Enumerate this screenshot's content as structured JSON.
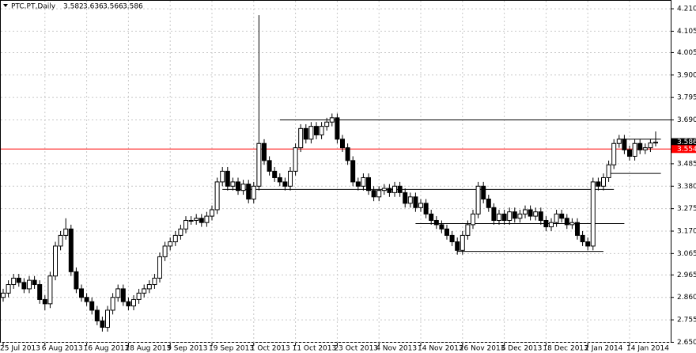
{
  "chart_data": {
    "type": "candlestick",
    "symbol": "PTC.PT,Daily",
    "categories": [
      "25 Jul 2013",
      null,
      null,
      null,
      null,
      null,
      null,
      null,
      "6 Aug 2013",
      null,
      null,
      null,
      null,
      null,
      null,
      null,
      "16 Aug 2013",
      null,
      null,
      null,
      null,
      null,
      null,
      null,
      "28 Aug 2013",
      null,
      null,
      null,
      null,
      null,
      null,
      null,
      "9 Sep 2013",
      null,
      null,
      null,
      null,
      null,
      null,
      null,
      "19 Sep 2013",
      null,
      null,
      null,
      null,
      null,
      null,
      null,
      "1 Oct 2013",
      null,
      null,
      null,
      null,
      null,
      null,
      null,
      "11 Oct 2013",
      null,
      null,
      null,
      null,
      null,
      null,
      null,
      "23 Oct 2013",
      null,
      null,
      null,
      null,
      null,
      null,
      null,
      "4 Nov 2013",
      null,
      null,
      null,
      null,
      null,
      null,
      null,
      "14 Nov 2013",
      null,
      null,
      null,
      null,
      null,
      null,
      null,
      "26 Nov 2013",
      null,
      null,
      null,
      null,
      null,
      null,
      null,
      "6 Dec 2013",
      null,
      null,
      null,
      null,
      null,
      null,
      null,
      "18 Dec 2013",
      null,
      null,
      null,
      null,
      null,
      null,
      null,
      "2 Jan 2014",
      null,
      null,
      null,
      null,
      null,
      null,
      null,
      "14 Jan 2014",
      null,
      null,
      null,
      null,
      null
    ],
    "open": [
      2.86,
      2.88,
      2.92,
      2.95,
      2.93,
      2.9,
      2.94,
      2.92,
      2.85,
      2.83,
      2.96,
      3.1,
      3.15,
      3.18,
      2.98,
      2.9,
      2.86,
      2.84,
      2.8,
      2.75,
      2.72,
      2.8,
      2.86,
      2.9,
      2.84,
      2.82,
      2.85,
      2.88,
      2.9,
      2.92,
      2.95,
      3.05,
      3.1,
      3.12,
      3.15,
      3.18,
      3.22,
      3.22,
      3.23,
      3.21,
      3.24,
      3.27,
      3.4,
      3.45,
      3.38,
      3.4,
      3.36,
      3.39,
      3.32,
      3.38,
      3.58,
      3.5,
      3.45,
      3.42,
      3.4,
      3.38,
      3.45,
      3.56,
      3.65,
      3.6,
      3.66,
      3.62,
      3.66,
      3.68,
      3.7,
      3.6,
      3.56,
      3.5,
      3.4,
      3.38,
      3.42,
      3.36,
      3.33,
      3.36,
      3.37,
      3.35,
      3.38,
      3.35,
      3.3,
      3.33,
      3.28,
      3.3,
      3.25,
      3.22,
      3.2,
      3.18,
      3.15,
      3.12,
      3.08,
      3.15,
      3.2,
      3.25,
      3.38,
      3.32,
      3.28,
      3.22,
      3.25,
      3.22,
      3.26,
      3.23,
      3.25,
      3.27,
      3.24,
      3.26,
      3.22,
      3.19,
      3.21,
      3.25,
      3.23,
      3.2,
      3.21,
      3.15,
      3.12,
      3.1,
      3.4,
      3.38,
      3.42,
      3.48,
      3.58,
      3.6,
      3.55,
      3.52,
      3.58,
      3.55,
      3.56,
      3.582
    ],
    "high": [
      2.9,
      2.94,
      2.97,
      2.97,
      2.95,
      2.96,
      2.96,
      2.94,
      2.87,
      2.98,
      3.12,
      3.17,
      3.23,
      3.2,
      3.0,
      2.92,
      2.88,
      2.86,
      2.82,
      2.77,
      2.82,
      2.88,
      2.92,
      2.92,
      2.86,
      2.87,
      2.9,
      2.92,
      2.94,
      2.97,
      3.07,
      3.12,
      3.14,
      3.17,
      3.2,
      3.24,
      3.24,
      3.25,
      3.25,
      3.26,
      3.29,
      3.42,
      3.47,
      3.47,
      3.42,
      3.42,
      3.41,
      3.41,
      3.4,
      4.18,
      3.6,
      3.52,
      3.47,
      3.44,
      3.42,
      3.47,
      3.58,
      3.67,
      3.67,
      3.68,
      3.68,
      3.68,
      3.7,
      3.72,
      3.72,
      3.62,
      3.58,
      3.52,
      3.42,
      3.44,
      3.44,
      3.38,
      3.38,
      3.39,
      3.39,
      3.4,
      3.4,
      3.37,
      3.35,
      3.35,
      3.32,
      3.32,
      3.27,
      3.24,
      3.22,
      3.2,
      3.17,
      3.14,
      3.17,
      3.22,
      3.27,
      3.4,
      3.4,
      3.34,
      3.3,
      3.27,
      3.27,
      3.28,
      3.28,
      3.27,
      3.29,
      3.29,
      3.28,
      3.28,
      3.24,
      3.23,
      3.27,
      3.27,
      3.25,
      3.23,
      3.23,
      3.17,
      3.14,
      3.42,
      3.42,
      3.44,
      3.5,
      3.6,
      3.62,
      3.62,
      3.57,
      3.6,
      3.6,
      3.58,
      3.6,
      3.636
    ],
    "low": [
      2.84,
      2.86,
      2.9,
      2.91,
      2.88,
      2.88,
      2.9,
      2.83,
      2.8,
      2.81,
      2.94,
      3.08,
      3.13,
      2.96,
      2.88,
      2.84,
      2.82,
      2.78,
      2.73,
      2.7,
      2.7,
      2.78,
      2.84,
      2.82,
      2.8,
      2.8,
      2.83,
      2.86,
      2.88,
      2.9,
      2.93,
      3.03,
      3.08,
      3.1,
      3.13,
      3.16,
      3.2,
      3.2,
      3.19,
      3.19,
      3.22,
      3.25,
      3.38,
      3.36,
      3.36,
      3.34,
      3.34,
      3.3,
      3.3,
      3.36,
      3.48,
      3.43,
      3.4,
      3.38,
      3.36,
      3.36,
      3.43,
      3.54,
      3.58,
      3.58,
      3.6,
      3.6,
      3.64,
      3.66,
      3.58,
      3.54,
      3.48,
      3.38,
      3.36,
      3.36,
      3.34,
      3.31,
      3.31,
      3.34,
      3.33,
      3.33,
      3.33,
      3.28,
      3.28,
      3.26,
      3.26,
      3.23,
      3.2,
      3.18,
      3.16,
      3.13,
      3.1,
      3.06,
      3.06,
      3.13,
      3.18,
      3.23,
      3.3,
      3.26,
      3.2,
      3.2,
      3.2,
      3.2,
      3.21,
      3.21,
      3.23,
      3.22,
      3.22,
      3.2,
      3.17,
      3.17,
      3.19,
      3.21,
      3.18,
      3.18,
      3.13,
      3.1,
      3.08,
      3.08,
      3.36,
      3.36,
      3.4,
      3.46,
      3.56,
      3.53,
      3.5,
      3.5,
      3.53,
      3.53,
      3.54,
      3.566
    ],
    "close": [
      2.88,
      2.92,
      2.95,
      2.93,
      2.9,
      2.94,
      2.92,
      2.85,
      2.83,
      2.96,
      3.1,
      3.15,
      3.18,
      2.98,
      2.9,
      2.86,
      2.84,
      2.8,
      2.75,
      2.72,
      2.8,
      2.86,
      2.9,
      2.84,
      2.82,
      2.85,
      2.88,
      2.9,
      2.92,
      2.95,
      3.05,
      3.1,
      3.12,
      3.15,
      3.18,
      3.22,
      3.22,
      3.23,
      3.21,
      3.24,
      3.27,
      3.4,
      3.45,
      3.38,
      3.4,
      3.36,
      3.39,
      3.32,
      3.38,
      3.58,
      3.5,
      3.45,
      3.42,
      3.4,
      3.38,
      3.45,
      3.56,
      3.65,
      3.6,
      3.66,
      3.62,
      3.66,
      3.68,
      3.7,
      3.6,
      3.56,
      3.5,
      3.4,
      3.38,
      3.42,
      3.36,
      3.33,
      3.36,
      3.37,
      3.35,
      3.38,
      3.35,
      3.3,
      3.33,
      3.28,
      3.3,
      3.25,
      3.22,
      3.2,
      3.18,
      3.15,
      3.12,
      3.08,
      3.15,
      3.2,
      3.25,
      3.38,
      3.32,
      3.28,
      3.22,
      3.25,
      3.22,
      3.26,
      3.23,
      3.25,
      3.27,
      3.24,
      3.26,
      3.22,
      3.19,
      3.21,
      3.25,
      3.23,
      3.2,
      3.21,
      3.15,
      3.12,
      3.1,
      3.4,
      3.38,
      3.42,
      3.48,
      3.58,
      3.6,
      3.55,
      3.52,
      3.58,
      3.55,
      3.56,
      3.582,
      3.586
    ],
    "ylim": [
      2.648,
      4.251
    ],
    "yticks": [
      {
        "value": 4.21,
        "label": "4.210"
      },
      4.105,
      4.005,
      {
        "value": 3.9,
        "label": "3.900"
      },
      3.795,
      {
        "value": 3.69,
        "label": "3.690"
      },
      3.485,
      {
        "value": 3.38,
        "label": "3.380"
      },
      3.275,
      {
        "value": 3.17,
        "label": "3.170"
      },
      3.065,
      2.965,
      {
        "value": 2.86,
        "label": "2.860"
      },
      2.755,
      {
        "value": 2.65,
        "label": "2.650"
      }
    ],
    "grid": true,
    "bid": 3.554,
    "bid_color": "#ff0000",
    "levels": [
      {
        "value": 3.69,
        "start_bar": 53,
        "end_bar": 128
      },
      {
        "value": 3.365,
        "start_bar": 42,
        "end_bar": 117
      },
      {
        "value": 3.205,
        "start_bar": 79,
        "end_bar": 119
      },
      {
        "value": 3.075,
        "start_bar": 87,
        "end_bar": 115
      },
      {
        "value": 3.44,
        "start_bar": 116,
        "end_bar": 126
      },
      {
        "value": 3.6,
        "start_bar": 118,
        "end_bar": 126
      }
    ]
  }
}
